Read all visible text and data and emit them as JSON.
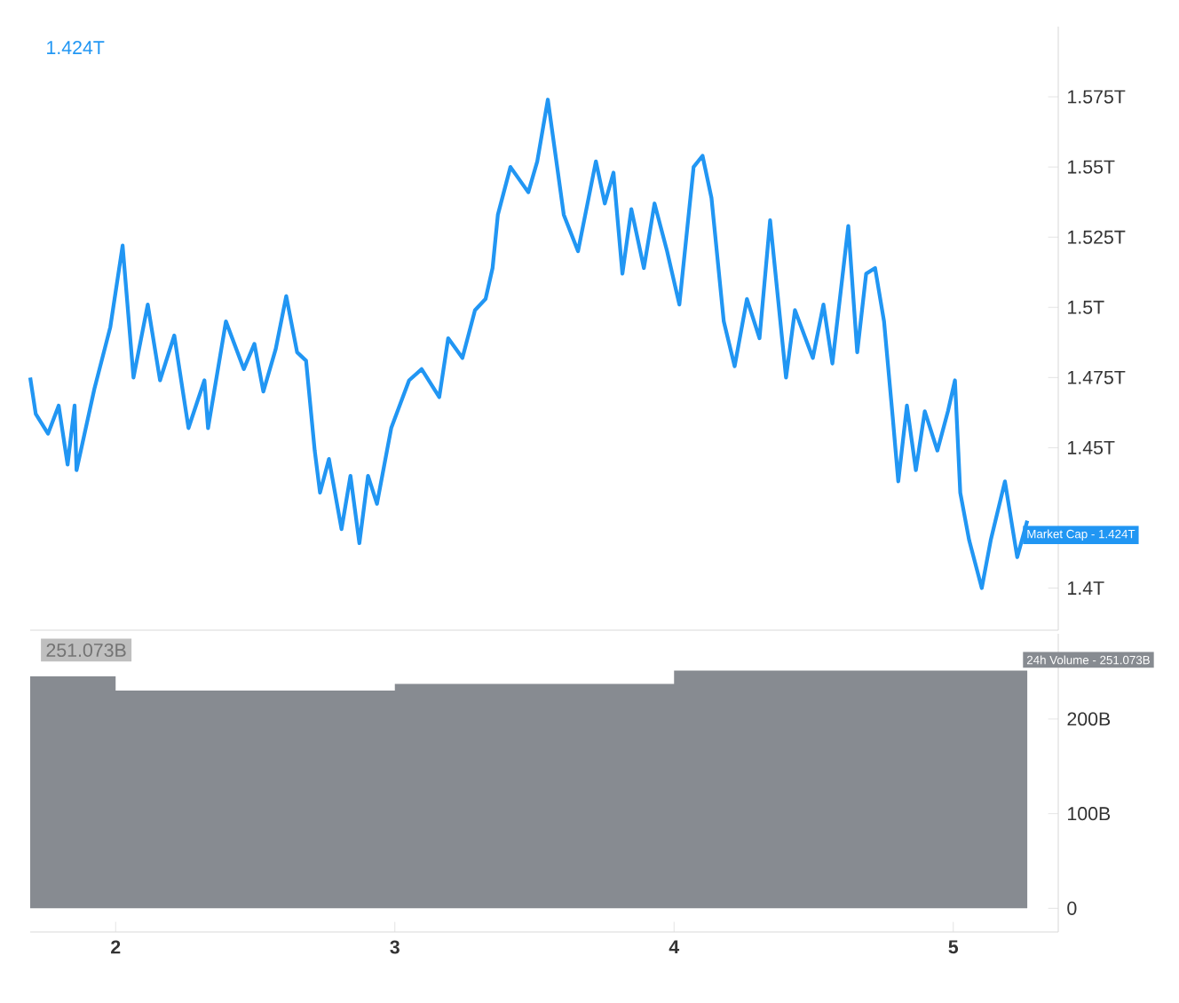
{
  "chart_data": [
    {
      "type": "line",
      "xlim": [
        1.694,
        5.376
      ],
      "ylim": [
        1.385,
        1.6
      ],
      "yticks": [
        {
          "value": 1.4,
          "label": "1.4T"
        },
        {
          "value": 1.45,
          "label": "1.45T"
        },
        {
          "value": 1.475,
          "label": "1.475T"
        },
        {
          "value": 1.5,
          "label": "1.5T"
        },
        {
          "value": 1.525,
          "label": "1.525T"
        },
        {
          "value": 1.55,
          "label": "1.55T"
        },
        {
          "value": 1.575,
          "label": "1.575T"
        }
      ],
      "tick_labels": "y",
      "marker": "none",
      "line_style": "solid",
      "series": [
        {
          "color": "#2196f3",
          "x": [
            1.694,
            1.714,
            1.758,
            1.796,
            1.828,
            1.853,
            1.86,
            1.924,
            1.981,
            2.025,
            2.064,
            2.115,
            2.159,
            2.21,
            2.261,
            2.318,
            2.331,
            2.395,
            2.459,
            2.497,
            2.529,
            2.573,
            2.611,
            2.65,
            2.682,
            2.713,
            2.732,
            2.764,
            2.809,
            2.841,
            2.873,
            2.904,
            2.936,
            2.987,
            3.051,
            3.096,
            3.159,
            3.191,
            3.242,
            3.287,
            3.325,
            3.35,
            3.369,
            3.414,
            3.478,
            3.51,
            3.548,
            3.605,
            3.656,
            3.72,
            3.752,
            3.783,
            3.815,
            3.847,
            3.892,
            3.93,
            3.975,
            4.019,
            4.07,
            4.102,
            4.134,
            4.178,
            4.217,
            4.261,
            4.306,
            4.344,
            4.401,
            4.433,
            4.497,
            4.535,
            4.567,
            4.624,
            4.656,
            4.688,
            4.72,
            4.752,
            4.783,
            4.803,
            4.834,
            4.866,
            4.898,
            4.943,
            4.981,
            5.006,
            5.025,
            5.057,
            5.102,
            5.134,
            5.185,
            5.229,
            5.265
          ],
          "values": [
            1.475,
            1.462,
            1.455,
            1.465,
            1.444,
            1.465,
            1.442,
            1.471,
            1.493,
            1.522,
            1.475,
            1.501,
            1.474,
            1.49,
            1.457,
            1.474,
            1.457,
            1.495,
            1.478,
            1.487,
            1.47,
            1.485,
            1.504,
            1.484,
            1.481,
            1.449,
            1.434,
            1.446,
            1.421,
            1.44,
            1.416,
            1.44,
            1.43,
            1.457,
            1.474,
            1.478,
            1.468,
            1.489,
            1.482,
            1.499,
            1.503,
            1.514,
            1.533,
            1.55,
            1.541,
            1.552,
            1.574,
            1.533,
            1.52,
            1.552,
            1.537,
            1.548,
            1.512,
            1.535,
            1.514,
            1.537,
            1.52,
            1.501,
            1.55,
            1.554,
            1.539,
            1.495,
            1.479,
            1.503,
            1.489,
            1.531,
            1.475,
            1.499,
            1.482,
            1.501,
            1.48,
            1.529,
            1.484,
            1.512,
            1.514,
            1.495,
            1.461,
            1.438,
            1.465,
            1.442,
            1.463,
            1.449,
            1.463,
            1.474,
            1.434,
            1.417,
            1.4,
            1.417,
            1.438,
            1.411,
            1.424
          ]
        }
      ],
      "annotations": [
        "1.424T",
        {
          "text": "Market Cap - 1.424T",
          "x": 5.265,
          "y": 1.424
        }
      ]
    },
    {
      "type": "step",
      "xlim": [
        1.694,
        5.376
      ],
      "ylim": [
        -25,
        290
      ],
      "xticks": [
        2,
        3,
        4,
        5
      ],
      "yticks": [
        0,
        {
          "value": 100,
          "label": "100B"
        },
        {
          "value": 200,
          "label": "200B"
        }
      ],
      "series": [
        {
          "type": "area",
          "color": "#878b91",
          "x": [
            1.694,
            2,
            3,
            4,
            5.265
          ],
          "values": [
            245,
            230,
            237,
            251,
            251
          ]
        }
      ],
      "annotations": [
        "251.073B",
        {
          "text": "24h Volume - 251.073B",
          "x": 5.265,
          "y": 251.073
        }
      ]
    }
  ]
}
